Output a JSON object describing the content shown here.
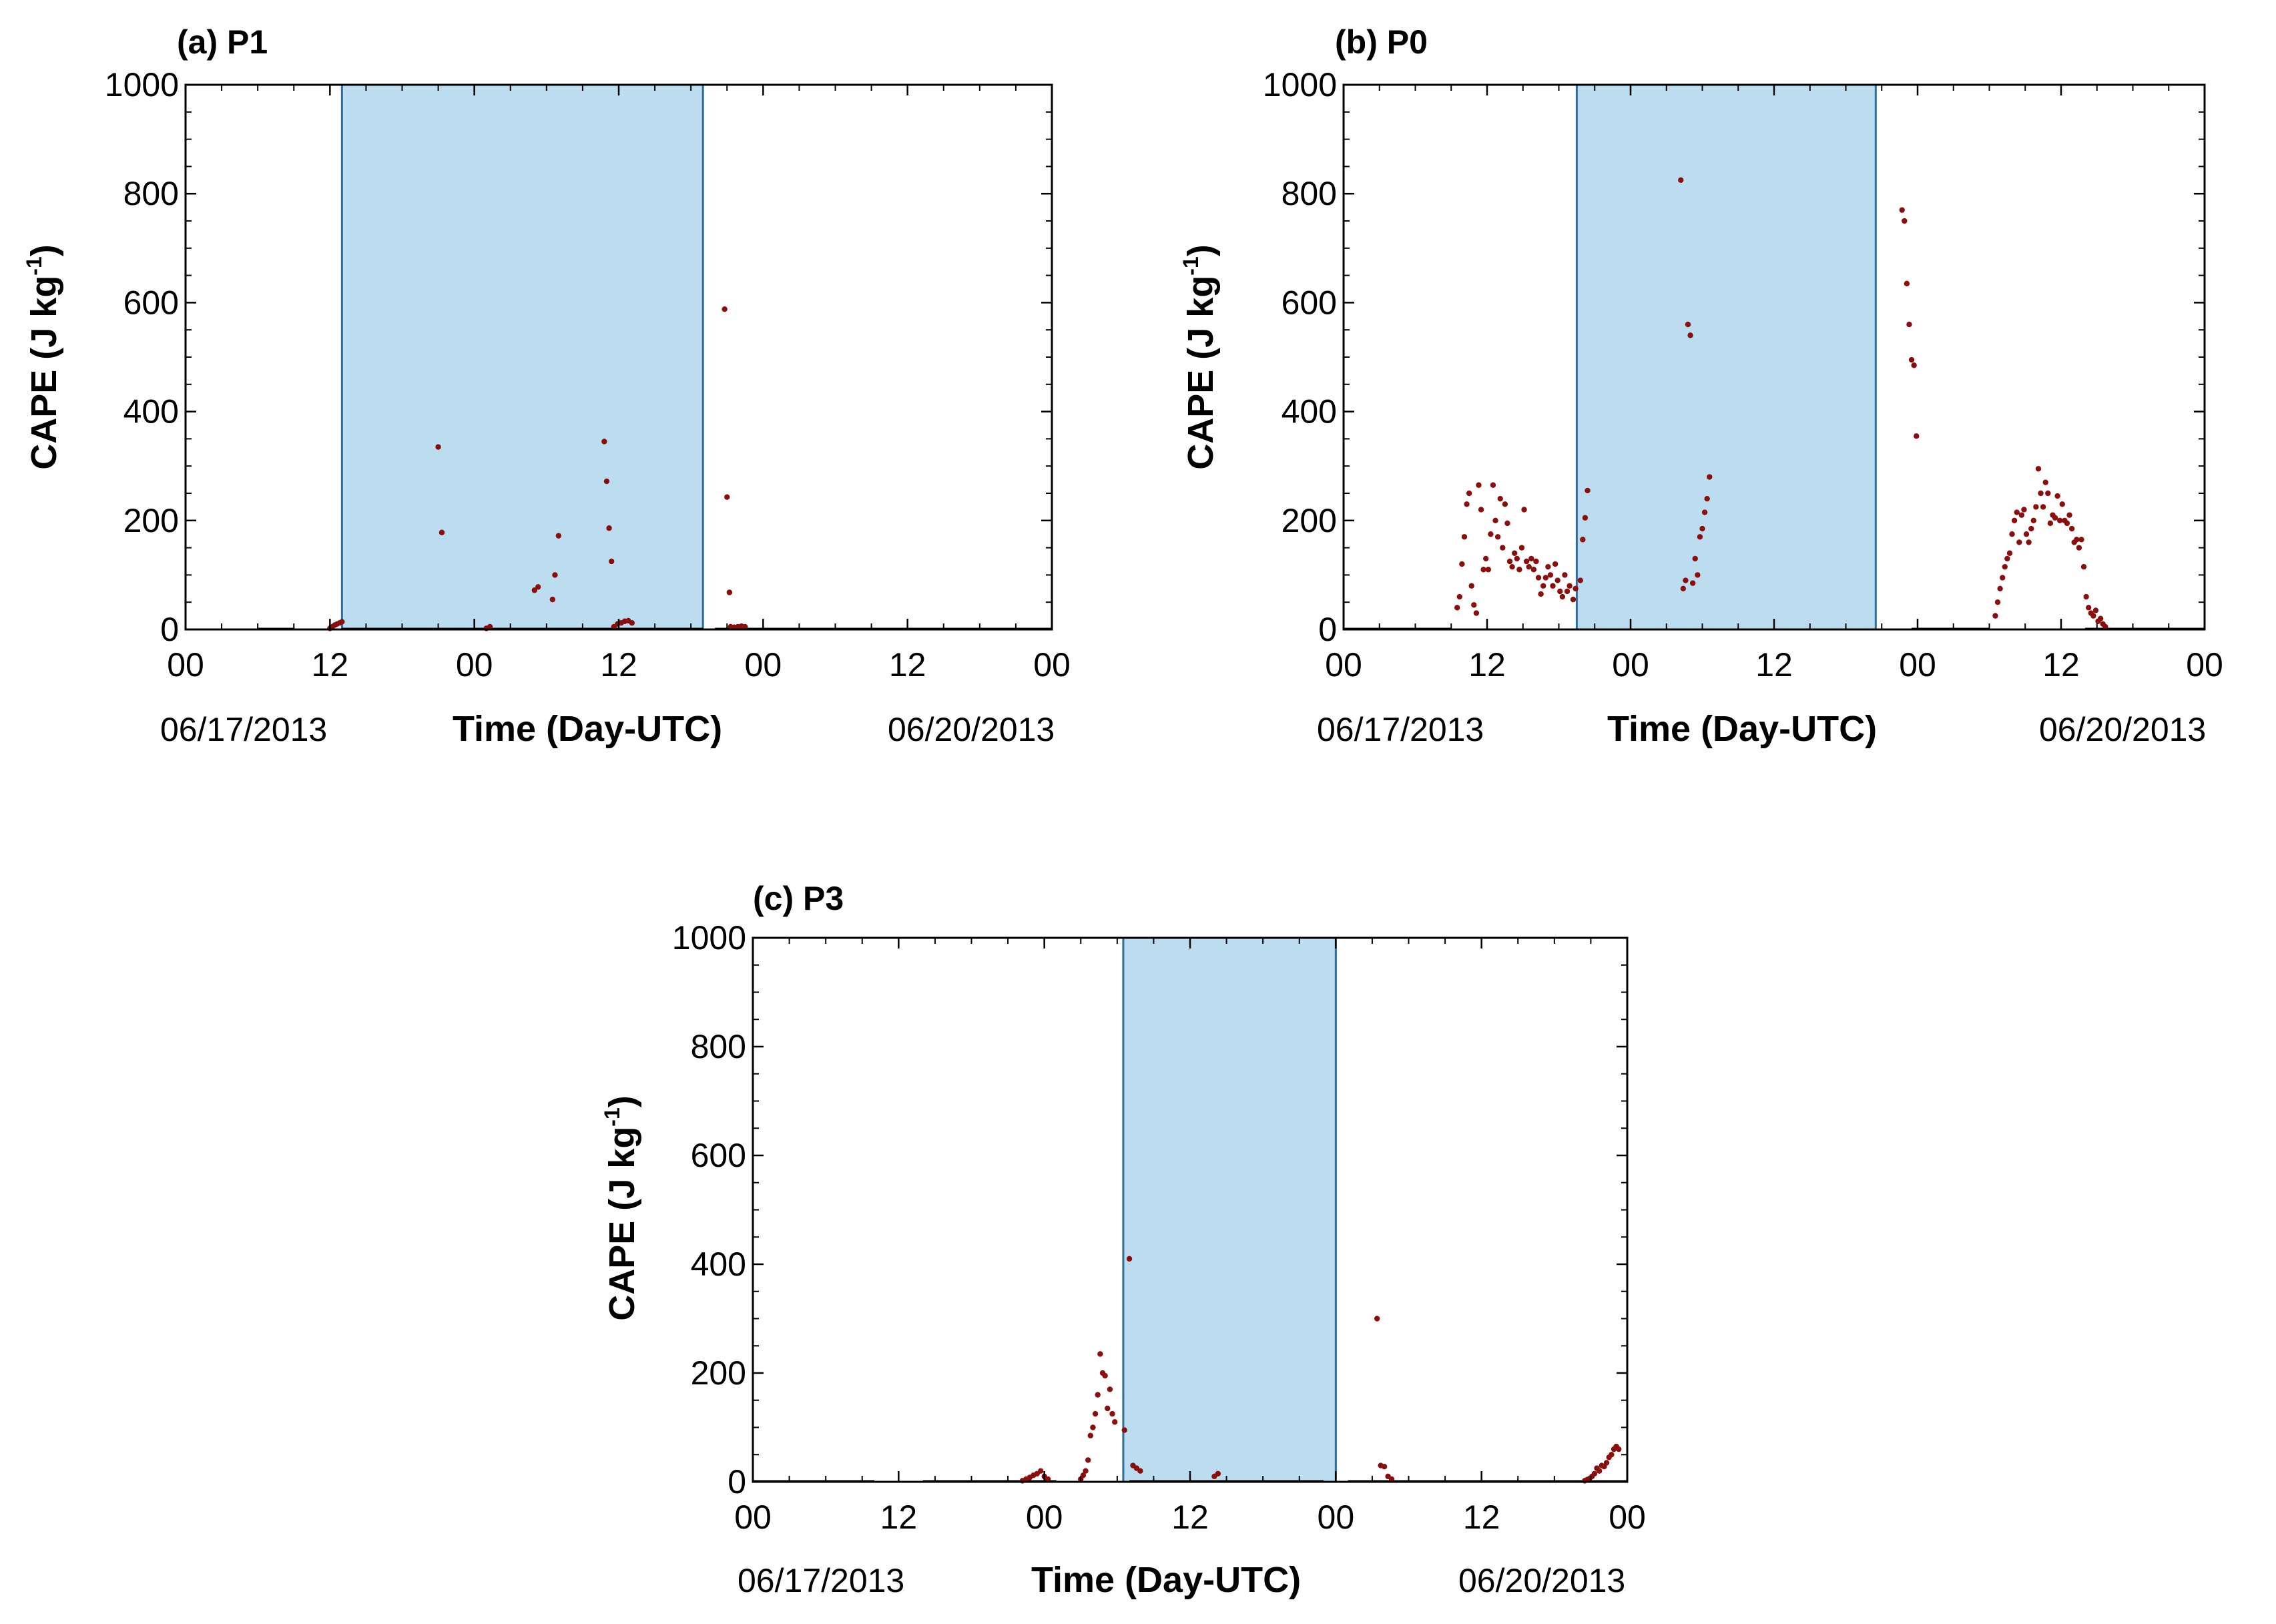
{
  "colors": {
    "shade_fill": "#bcdcf0",
    "shade_edge": "#2d6e9e",
    "points": "#8b0e0e"
  },
  "shared": {
    "ylabel": "CAPE (J kg",
    "ylabel_sup": "-1",
    "ylabel_close": ")",
    "xlabel": "Time (Day-UTC)",
    "date_start": "06/17/2013",
    "date_end": "06/20/2013"
  },
  "chart_data": [
    {
      "type": "scatter",
      "title": "(a) P1",
      "xlabel": "Time (Day-UTC)",
      "ylabel": "CAPE (J kg-1)",
      "x_unit": "hours since 06/17/2013 00 UTC",
      "xlim": [
        0,
        72
      ],
      "ylim": [
        0,
        1000
      ],
      "yticks": [
        0,
        200,
        400,
        600,
        800,
        1000
      ],
      "xticks": [
        0,
        12,
        24,
        36,
        48,
        60,
        72
      ],
      "xtick_labels": [
        "00",
        "12",
        "00",
        "12",
        "00",
        "12",
        "00"
      ],
      "shade": [
        13,
        43
      ],
      "zero_segments": [
        [
          6,
          9
        ],
        [
          13,
          43
        ],
        [
          44,
          72
        ]
      ],
      "points": [
        [
          12,
          2
        ],
        [
          12.2,
          5
        ],
        [
          12.4,
          8
        ],
        [
          12.6,
          10
        ],
        [
          12.8,
          12
        ],
        [
          13,
          14
        ],
        [
          21,
          335
        ],
        [
          21.3,
          178
        ],
        [
          25,
          2
        ],
        [
          25.3,
          5
        ],
        [
          29,
          72
        ],
        [
          29.3,
          78
        ],
        [
          30.5,
          55
        ],
        [
          30.7,
          100
        ],
        [
          31,
          172
        ],
        [
          34.8,
          345
        ],
        [
          35,
          272
        ],
        [
          35.2,
          186
        ],
        [
          35.4,
          125
        ],
        [
          35.6,
          5
        ],
        [
          35.9,
          10
        ],
        [
          36.2,
          12
        ],
        [
          36.5,
          15
        ],
        [
          36.8,
          16
        ],
        [
          37.1,
          12
        ],
        [
          44.8,
          588
        ],
        [
          45,
          243
        ],
        [
          45.2,
          68
        ],
        [
          45.3,
          5
        ],
        [
          45.6,
          4
        ],
        [
          45.9,
          5
        ],
        [
          46.2,
          6
        ],
        [
          46.5,
          5
        ]
      ]
    },
    {
      "type": "scatter",
      "title": "(b) P0",
      "xlabel": "Time (Day-UTC)",
      "ylabel": "CAPE (J kg-1)",
      "x_unit": "hours since 06/17/2013 00 UTC",
      "xlim": [
        0,
        72
      ],
      "ylim": [
        0,
        1000
      ],
      "yticks": [
        0,
        200,
        400,
        600,
        800,
        1000
      ],
      "xticks": [
        0,
        12,
        24,
        36,
        48,
        60,
        72
      ],
      "xtick_labels": [
        "00",
        "12",
        "00",
        "12",
        "00",
        "12",
        "00"
      ],
      "shade": [
        19.5,
        44.5
      ],
      "zero_segments": [
        [
          0,
          9
        ],
        [
          47.5,
          54
        ],
        [
          62,
          72
        ]
      ],
      "points": [
        [
          9.5,
          40
        ],
        [
          9.7,
          60
        ],
        [
          9.9,
          120
        ],
        [
          10.1,
          170
        ],
        [
          10.3,
          230
        ],
        [
          10.5,
          250
        ],
        [
          10.7,
          80
        ],
        [
          10.9,
          45
        ],
        [
          11.1,
          30
        ],
        [
          11.3,
          265
        ],
        [
          11.5,
          220
        ],
        [
          11.7,
          110
        ],
        [
          11.9,
          130
        ],
        [
          12.1,
          110
        ],
        [
          12.3,
          175
        ],
        [
          12.5,
          265
        ],
        [
          12.7,
          200
        ],
        [
          12.9,
          170
        ],
        [
          13.1,
          240
        ],
        [
          13.3,
          150
        ],
        [
          13.5,
          230
        ],
        [
          13.7,
          195
        ],
        [
          13.9,
          125
        ],
        [
          14.1,
          115
        ],
        [
          14.3,
          140
        ],
        [
          14.5,
          130
        ],
        [
          14.7,
          110
        ],
        [
          14.9,
          150
        ],
        [
          15.1,
          220
        ],
        [
          15.3,
          125
        ],
        [
          15.5,
          115
        ],
        [
          15.7,
          130
        ],
        [
          15.9,
          110
        ],
        [
          16.1,
          125
        ],
        [
          16.3,
          95
        ],
        [
          16.5,
          65
        ],
        [
          16.7,
          80
        ],
        [
          16.9,
          95
        ],
        [
          17.1,
          115
        ],
        [
          17.3,
          100
        ],
        [
          17.5,
          80
        ],
        [
          17.7,
          120
        ],
        [
          17.9,
          90
        ],
        [
          18.1,
          70
        ],
        [
          18.3,
          60
        ],
        [
          18.5,
          100
        ],
        [
          18.7,
          70
        ],
        [
          18.9,
          80
        ],
        [
          19.2,
          55
        ],
        [
          19.4,
          75
        ],
        [
          19.8,
          90
        ],
        [
          20.0,
          165
        ],
        [
          20.2,
          205
        ],
        [
          20.4,
          255
        ],
        [
          28.2,
          825
        ],
        [
          28.4,
          75
        ],
        [
          28.6,
          90
        ],
        [
          28.8,
          560
        ],
        [
          29.0,
          540
        ],
        [
          29.2,
          85
        ],
        [
          29.4,
          130
        ],
        [
          29.6,
          100
        ],
        [
          29.8,
          170
        ],
        [
          30.0,
          185
        ],
        [
          30.2,
          215
        ],
        [
          30.4,
          240
        ],
        [
          30.6,
          280
        ],
        [
          46.7,
          770
        ],
        [
          46.9,
          750
        ],
        [
          47.1,
          635
        ],
        [
          47.3,
          560
        ],
        [
          47.5,
          495
        ],
        [
          47.7,
          485
        ],
        [
          47.9,
          355
        ],
        [
          54.5,
          25
        ],
        [
          54.7,
          50
        ],
        [
          54.9,
          75
        ],
        [
          55.1,
          95
        ],
        [
          55.3,
          115
        ],
        [
          55.5,
          130
        ],
        [
          55.7,
          140
        ],
        [
          55.9,
          175
        ],
        [
          56.1,
          200
        ],
        [
          56.3,
          215
        ],
        [
          56.5,
          160
        ],
        [
          56.7,
          210
        ],
        [
          56.9,
          220
        ],
        [
          57.1,
          175
        ],
        [
          57.3,
          160
        ],
        [
          57.5,
          185
        ],
        [
          57.7,
          200
        ],
        [
          57.9,
          225
        ],
        [
          58.1,
          295
        ],
        [
          58.3,
          250
        ],
        [
          58.5,
          225
        ],
        [
          58.7,
          270
        ],
        [
          58.9,
          250
        ],
        [
          59.1,
          195
        ],
        [
          59.3,
          210
        ],
        [
          59.5,
          205
        ],
        [
          59.7,
          245
        ],
        [
          59.9,
          200
        ],
        [
          60.1,
          230
        ],
        [
          60.3,
          200
        ],
        [
          60.5,
          195
        ],
        [
          60.7,
          210
        ],
        [
          60.9,
          185
        ],
        [
          61.1,
          160
        ],
        [
          61.3,
          165
        ],
        [
          61.5,
          150
        ],
        [
          61.7,
          165
        ],
        [
          61.9,
          115
        ],
        [
          62.1,
          60
        ],
        [
          62.3,
          40
        ],
        [
          62.5,
          30
        ],
        [
          62.7,
          25
        ],
        [
          62.9,
          35
        ],
        [
          63.1,
          15
        ],
        [
          63.3,
          20
        ],
        [
          63.5,
          10
        ],
        [
          63.7,
          5
        ]
      ]
    },
    {
      "type": "scatter",
      "title": "(c) P3",
      "xlabel": "Time (Day-UTC)",
      "ylabel": "CAPE (J kg-1)",
      "x_unit": "hours since 06/17/2013 00 UTC",
      "xlim": [
        0,
        72
      ],
      "ylim": [
        0,
        1000
      ],
      "yticks": [
        0,
        200,
        400,
        600,
        800,
        1000
      ],
      "xticks": [
        0,
        12,
        24,
        36,
        48,
        60,
        72
      ],
      "xtick_labels": [
        "00",
        "12",
        "00",
        "12",
        "00",
        "12",
        "00"
      ],
      "shade": [
        30.5,
        48
      ],
      "zero_segments": [
        [
          0,
          10
        ],
        [
          14,
          25
        ],
        [
          31,
          47
        ],
        [
          49,
          72
        ]
      ],
      "points": [
        [
          22.2,
          2
        ],
        [
          22.5,
          5
        ],
        [
          22.8,
          8
        ],
        [
          23.1,
          12
        ],
        [
          23.4,
          15
        ],
        [
          23.7,
          20
        ],
        [
          24.0,
          10
        ],
        [
          24.3,
          5
        ],
        [
          27.0,
          5
        ],
        [
          27.2,
          12
        ],
        [
          27.4,
          20
        ],
        [
          27.6,
          40
        ],
        [
          27.8,
          85
        ],
        [
          28.0,
          100
        ],
        [
          28.2,
          125
        ],
        [
          28.4,
          160
        ],
        [
          28.6,
          235
        ],
        [
          28.8,
          200
        ],
        [
          29.0,
          195
        ],
        [
          29.2,
          135
        ],
        [
          29.4,
          170
        ],
        [
          29.6,
          125
        ],
        [
          29.8,
          110
        ],
        [
          30.6,
          95
        ],
        [
          31.0,
          410
        ],
        [
          31.3,
          30
        ],
        [
          31.6,
          25
        ],
        [
          31.9,
          20
        ],
        [
          38.0,
          10
        ],
        [
          38.3,
          15
        ],
        [
          51.4,
          300
        ],
        [
          51.7,
          30
        ],
        [
          52.0,
          28
        ],
        [
          52.3,
          10
        ],
        [
          52.6,
          5
        ],
        [
          68.5,
          2
        ],
        [
          68.7,
          4
        ],
        [
          68.9,
          6
        ],
        [
          69.1,
          10
        ],
        [
          69.3,
          15
        ],
        [
          69.5,
          25
        ],
        [
          69.7,
          20
        ],
        [
          69.9,
          30
        ],
        [
          70.1,
          28
        ],
        [
          70.3,
          35
        ],
        [
          70.5,
          45
        ],
        [
          70.7,
          50
        ],
        [
          70.9,
          60
        ],
        [
          71.1,
          65
        ],
        [
          71.3,
          60
        ]
      ]
    }
  ]
}
